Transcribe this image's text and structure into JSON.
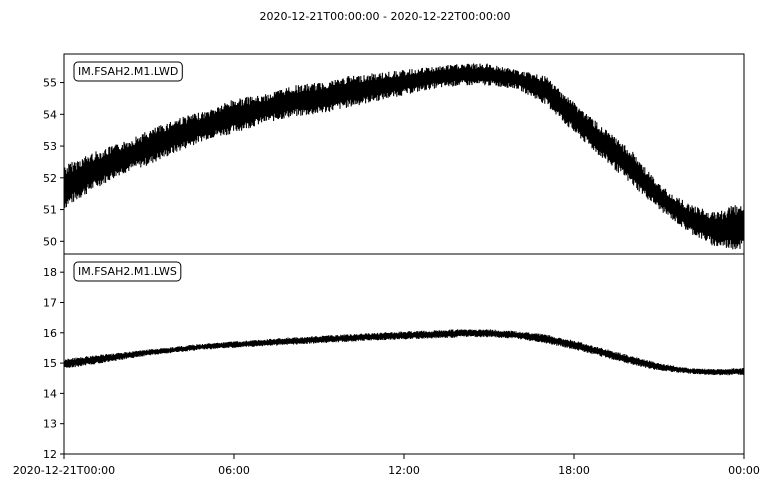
{
  "chart_data": {
    "type": "line",
    "title": "2020-12-21T00:00:00  -  2020-12-22T00:00:00",
    "x_ticks": [
      "2020-12-21T00:00",
      "06:00",
      "12:00",
      "18:00",
      "00:00"
    ],
    "xlim": [
      "2020-12-21T00:00:00",
      "2020-12-22T00:00:00"
    ],
    "grid": false,
    "panels": [
      {
        "label": "IM.FSAH2.M1.LWD",
        "ylim": [
          49.6,
          55.9
        ],
        "y_ticks": [
          50,
          51,
          52,
          53,
          54,
          55
        ],
        "series": [
          {
            "x": [
              "2020-12-21T00:00",
              "2020-12-21T01:00",
              "2020-12-21T02:00",
              "2020-12-21T03:00",
              "2020-12-21T04:00",
              "2020-12-21T05:00",
              "2020-12-21T06:00",
              "2020-12-21T07:00",
              "2020-12-21T08:00",
              "2020-12-21T09:00",
              "2020-12-21T10:00",
              "2020-12-21T11:00",
              "2020-12-21T12:00",
              "2020-12-21T13:00",
              "2020-12-21T14:00",
              "2020-12-21T15:00",
              "2020-12-21T16:00",
              "2020-12-21T17:00",
              "2020-12-21T18:00",
              "2020-12-21T19:00",
              "2020-12-21T20:00",
              "2020-12-21T21:00",
              "2020-12-21T22:00",
              "2020-12-21T23:00",
              "2020-12-22T00:00"
            ],
            "min": [
              51.0,
              51.6,
              52.1,
              52.4,
              52.8,
              53.2,
              53.4,
              53.7,
              53.9,
              54.0,
              54.2,
              54.4,
              54.6,
              54.8,
              54.9,
              54.9,
              54.8,
              54.3,
              53.4,
              52.6,
              51.8,
              51.0,
              50.3,
              49.8,
              49.7
            ],
            "max": [
              52.4,
              52.8,
              53.1,
              53.5,
              53.9,
              54.1,
              54.5,
              54.6,
              54.9,
              55.0,
              55.2,
              55.3,
              55.4,
              55.5,
              55.6,
              55.6,
              55.4,
              55.2,
              54.4,
              53.6,
              52.9,
              51.8,
              51.2,
              50.9,
              51.3
            ]
          }
        ]
      },
      {
        "label": "IM.FSAH2.M1.LWS",
        "ylim": [
          12,
          18.6
        ],
        "y_ticks": [
          12,
          13,
          14,
          15,
          16,
          17,
          18
        ],
        "series": [
          {
            "x": [
              "2020-12-21T00:00",
              "2020-12-21T01:00",
              "2020-12-21T02:00",
              "2020-12-21T03:00",
              "2020-12-21T04:00",
              "2020-12-21T05:00",
              "2020-12-21T06:00",
              "2020-12-21T07:00",
              "2020-12-21T08:00",
              "2020-12-21T09:00",
              "2020-12-21T10:00",
              "2020-12-21T11:00",
              "2020-12-21T12:00",
              "2020-12-21T13:00",
              "2020-12-21T14:00",
              "2020-12-21T15:00",
              "2020-12-21T16:00",
              "2020-12-21T17:00",
              "2020-12-21T18:00",
              "2020-12-21T19:00",
              "2020-12-21T20:00",
              "2020-12-21T21:00",
              "2020-12-21T22:00",
              "2020-12-21T23:00",
              "2020-12-22T00:00"
            ],
            "min": [
              14.8,
              14.95,
              15.1,
              15.25,
              15.35,
              15.45,
              15.5,
              15.55,
              15.6,
              15.65,
              15.7,
              15.75,
              15.78,
              15.8,
              15.85,
              15.85,
              15.8,
              15.65,
              15.45,
              15.2,
              14.95,
              14.75,
              14.65,
              14.6,
              14.6
            ],
            "max": [
              15.15,
              15.25,
              15.35,
              15.45,
              15.55,
              15.65,
              15.72,
              15.78,
              15.85,
              15.9,
              15.95,
              16.0,
              16.05,
              16.08,
              16.12,
              16.12,
              16.05,
              15.95,
              15.75,
              15.5,
              15.25,
              15.0,
              14.85,
              14.8,
              14.85
            ]
          }
        ]
      }
    ]
  }
}
